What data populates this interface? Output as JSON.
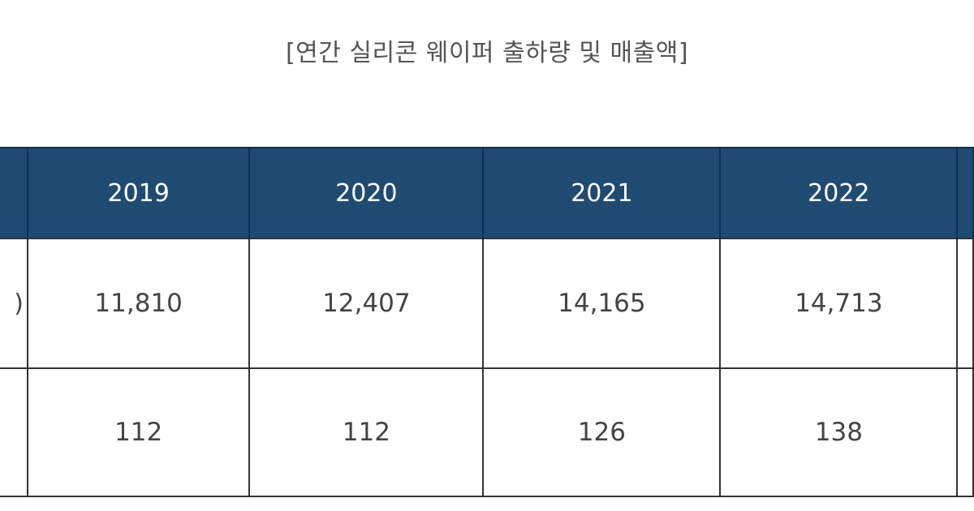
{
  "chart_data": {
    "type": "table",
    "title": "[연간 실리콘 웨이퍼 출하량 및 매출액]",
    "columns": [
      "2019",
      "2020",
      "2021",
      "2022"
    ],
    "rows": [
      {
        "label": ")",
        "values": [
          "11,810",
          "12,407",
          "14,165",
          "14,713"
        ]
      },
      {
        "label": "",
        "values": [
          "112",
          "112",
          "126",
          "138"
        ]
      }
    ]
  }
}
